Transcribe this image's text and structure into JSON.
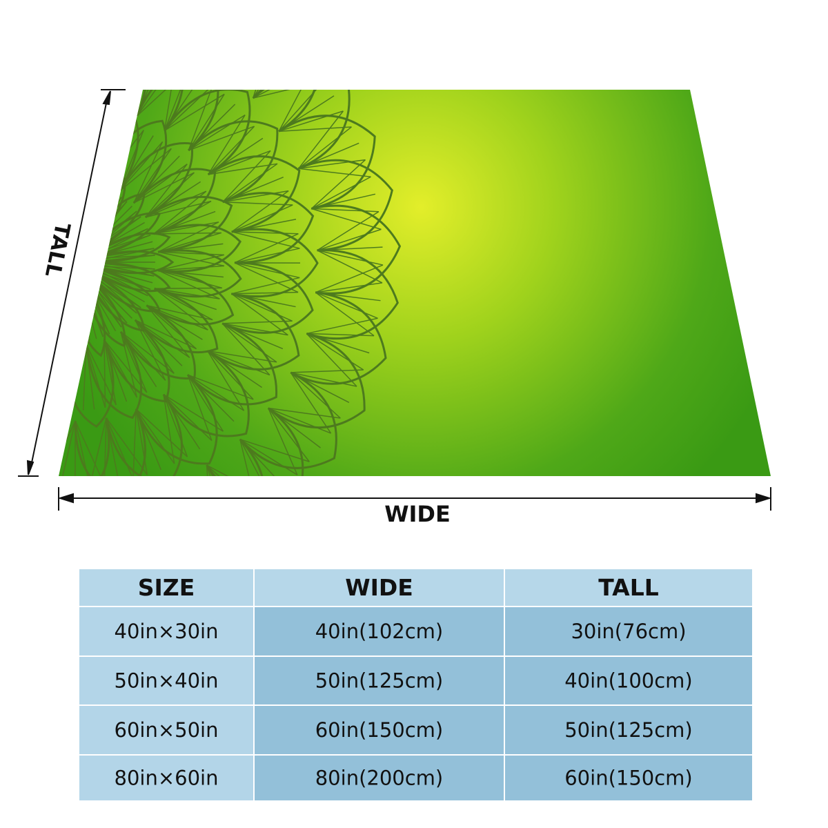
{
  "diagram": {
    "tall_label": "TALL",
    "wide_label": "WIDE"
  },
  "table": {
    "header": [
      "SIZE",
      "WIDE",
      "TALL"
    ],
    "rows": [
      [
        "40in×30in",
        "40in(102cm)",
        "30in(76cm)"
      ],
      [
        "50in×40in",
        "50in(125cm)",
        "40in(100cm)"
      ],
      [
        "60in×50in",
        "60in(150cm)",
        "50in(125cm)"
      ],
      [
        "80in×60in",
        "80in(200cm)",
        "60in(150cm)"
      ]
    ]
  }
}
